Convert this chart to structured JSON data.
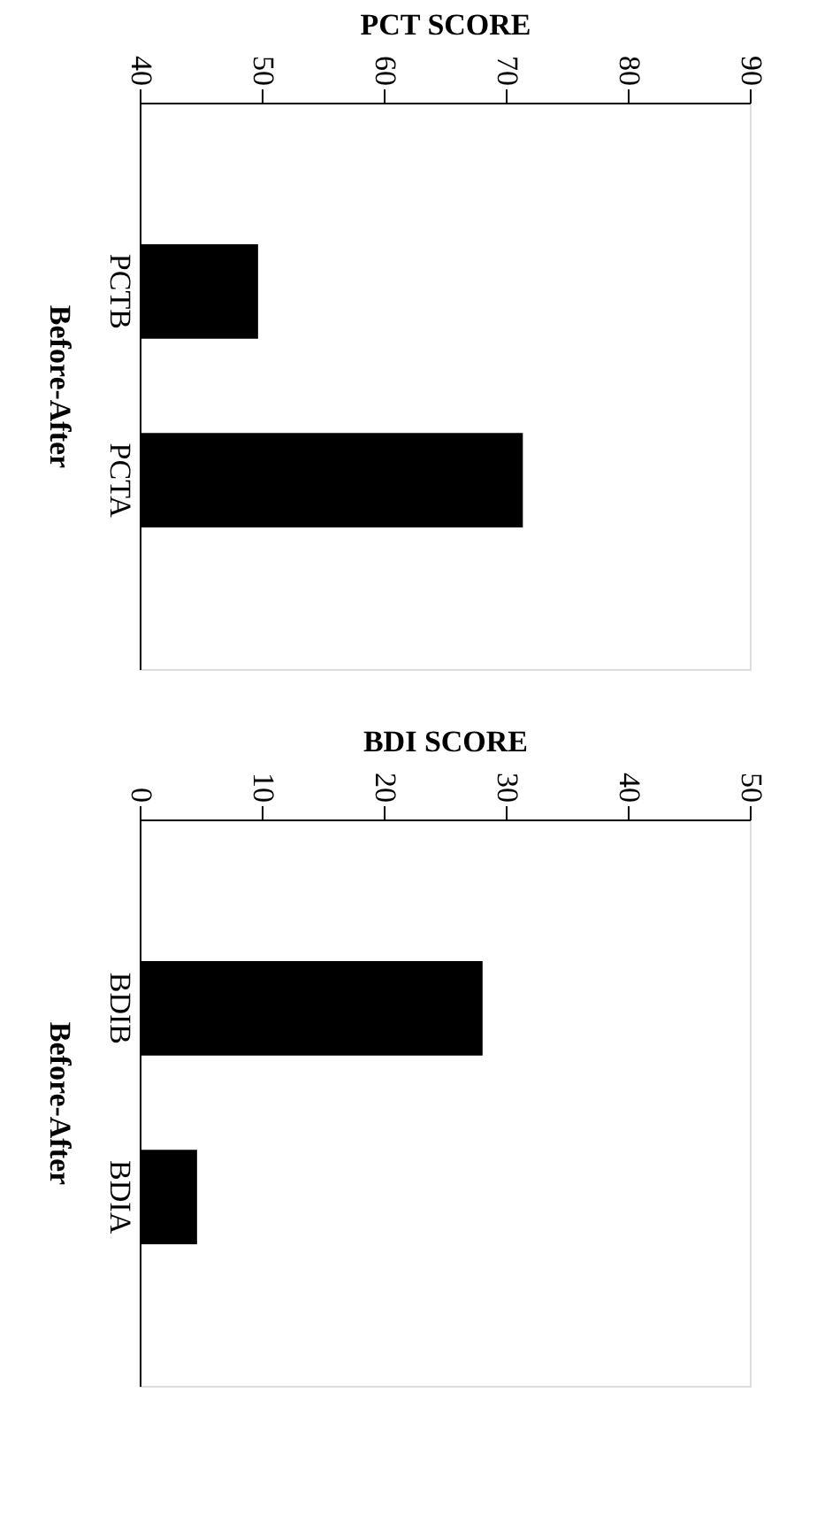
{
  "chart_data": [
    {
      "type": "bar",
      "orientation": "horizontal",
      "xlabel": "PCT SCORE",
      "ylabel": "Before-After",
      "categories": [
        "PCTB",
        "PCTA"
      ],
      "values": [
        49.7,
        71.4
      ],
      "color": "#000000",
      "xlim": [
        40,
        90
      ],
      "xticks": [
        40,
        50,
        60,
        70,
        80,
        90
      ]
    },
    {
      "type": "bar",
      "orientation": "horizontal",
      "xlabel": "BDI SCORE",
      "ylabel": "Before-After",
      "categories": [
        "BDIB",
        "BDIA"
      ],
      "values": [
        28.1,
        4.7
      ],
      "color": "#000000",
      "xlim": [
        0,
        50
      ],
      "xticks": [
        0,
        10,
        20,
        30,
        40,
        50
      ]
    }
  ]
}
